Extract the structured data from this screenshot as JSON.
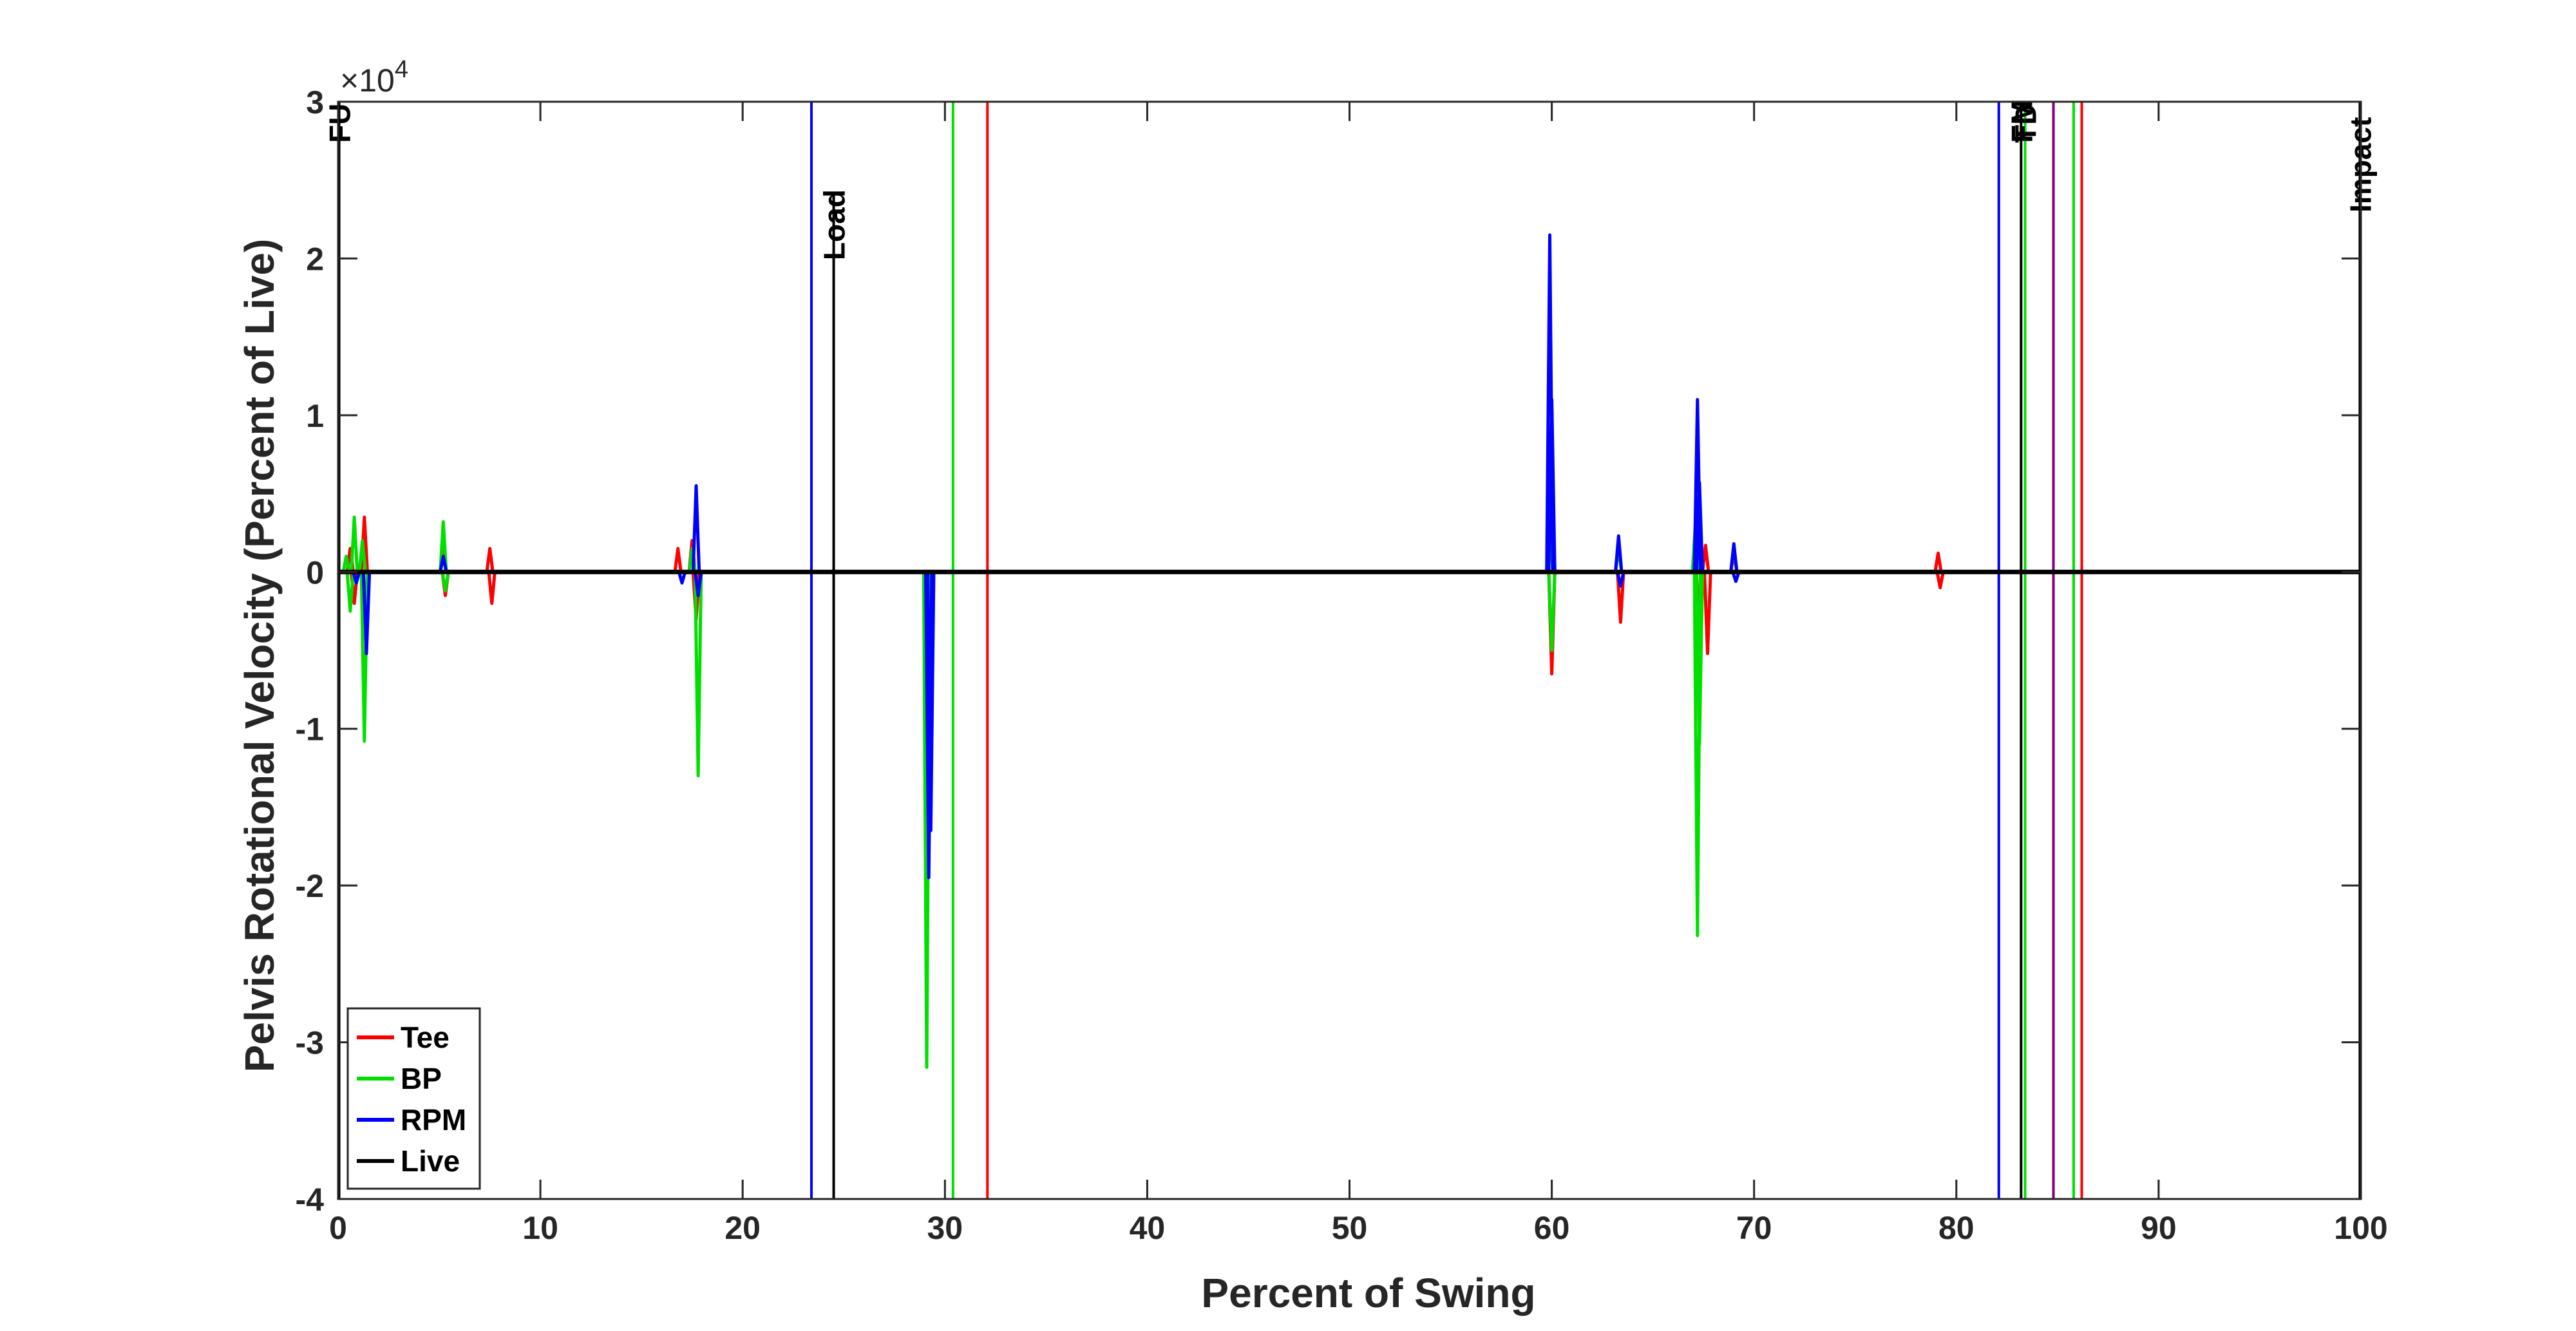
{
  "chart_data": {
    "type": "line",
    "title": "",
    "xlabel": "Percent of Swing",
    "ylabel": "Pelvis Rotational Velocity (Percent of Live)",
    "xlim": [
      0,
      100
    ],
    "ylim": [
      -40000,
      30000
    ],
    "xticks": [
      0,
      10,
      20,
      30,
      40,
      50,
      60,
      70,
      80,
      90,
      100
    ],
    "xtick_labels": [
      "0",
      "10",
      "20",
      "30",
      "40",
      "50",
      "60",
      "70",
      "80",
      "90",
      "100"
    ],
    "yticks": [
      -40000,
      -30000,
      -20000,
      -10000,
      0,
      10000,
      20000,
      30000
    ],
    "ytick_labels": [
      "-4",
      "-3",
      "-2",
      "-1",
      "0",
      "1",
      "2",
      "3"
    ],
    "y_exponent_label": "×10",
    "y_exponent_power": "4",
    "grid": false,
    "legend": {
      "placement": "bottom-left",
      "entries": [
        {
          "name": "Tee",
          "color": "#ff0000"
        },
        {
          "name": "BP",
          "color": "#00e000"
        },
        {
          "name": "RPM",
          "color": "#0000ff"
        },
        {
          "name": "Live",
          "color": "#000000"
        }
      ]
    },
    "series": [
      {
        "name": "Tee",
        "color": "#ff0000",
        "baseline": 0,
        "spikes": [
          [
            0.6,
            1500
          ],
          [
            0.8,
            -2000
          ],
          [
            1.3,
            3500
          ],
          [
            1.4,
            -3500
          ],
          [
            5.2,
            2500
          ],
          [
            5.3,
            -1500
          ],
          [
            7.5,
            1500
          ],
          [
            7.6,
            -2000
          ],
          [
            16.8,
            1500
          ],
          [
            17.5,
            2000
          ],
          [
            17.7,
            -3000
          ],
          [
            29.2,
            -5000
          ],
          [
            59.9,
            4000
          ],
          [
            60.0,
            -6500
          ],
          [
            63.3,
            2000
          ],
          [
            63.4,
            -3200
          ],
          [
            67.2,
            2500
          ],
          [
            67.3,
            -4000
          ],
          [
            67.6,
            1700
          ],
          [
            67.7,
            -5200
          ],
          [
            69.0,
            1200
          ],
          [
            79.1,
            1200
          ],
          [
            79.2,
            -1000
          ]
        ]
      },
      {
        "name": "BP",
        "color": "#00e000",
        "baseline": 0,
        "spikes": [
          [
            0.4,
            1000
          ],
          [
            0.6,
            -2500
          ],
          [
            0.8,
            3500
          ],
          [
            1.2,
            2000
          ],
          [
            1.3,
            -10800
          ],
          [
            5.2,
            3200
          ],
          [
            5.3,
            -1200
          ],
          [
            17.5,
            1500
          ],
          [
            17.8,
            -13000
          ],
          [
            29.1,
            -31600
          ],
          [
            29.2,
            -9500
          ],
          [
            59.9,
            3000
          ],
          [
            60.0,
            -5000
          ],
          [
            63.3,
            1500
          ],
          [
            67.1,
            3000
          ],
          [
            67.2,
            -23200
          ],
          [
            67.3,
            -11000
          ],
          [
            69.0,
            1500
          ]
        ]
      },
      {
        "name": "RPM",
        "color": "#0000ff",
        "baseline": 0,
        "spikes": [
          [
            0.9,
            -700
          ],
          [
            1.4,
            -5200
          ],
          [
            5.2,
            1000
          ],
          [
            17.0,
            -700
          ],
          [
            17.7,
            5500
          ],
          [
            17.8,
            -1500
          ],
          [
            29.2,
            -19500
          ],
          [
            29.3,
            -16500
          ],
          [
            59.9,
            21500
          ],
          [
            60.0,
            11000
          ],
          [
            63.3,
            2300
          ],
          [
            63.4,
            -900
          ],
          [
            67.2,
            11000
          ],
          [
            67.3,
            5700
          ],
          [
            69.0,
            1800
          ],
          [
            69.1,
            -600
          ]
        ]
      },
      {
        "name": "Live",
        "color": "#000000",
        "baseline": 0,
        "spikes": []
      }
    ],
    "event_lines": [
      {
        "x": 0.05,
        "color": "#000000",
        "label": "FU"
      },
      {
        "x": 23.4,
        "color": "#0000ff",
        "label": ""
      },
      {
        "x": 24.5,
        "color": "#000000",
        "label": "Load",
        "ymax": 24000
      },
      {
        "x": 30.4,
        "color": "#00e000",
        "label": ""
      },
      {
        "x": 32.1,
        "color": "#ff0000",
        "label": ""
      },
      {
        "x": 82.1,
        "color": "#0000ff",
        "label": ""
      },
      {
        "x": 83.2,
        "color": "#000000",
        "label": "FM"
      },
      {
        "x": 83.4,
        "color": "#00e000",
        "label": "TD"
      },
      {
        "x": 84.8,
        "color": "#800080",
        "label": ""
      },
      {
        "x": 85.8,
        "color": "#00e000",
        "label": ""
      },
      {
        "x": 86.2,
        "color": "#ff0000",
        "label": ""
      },
      {
        "x": 99.95,
        "color": "#000000",
        "label": "Impact"
      }
    ]
  }
}
